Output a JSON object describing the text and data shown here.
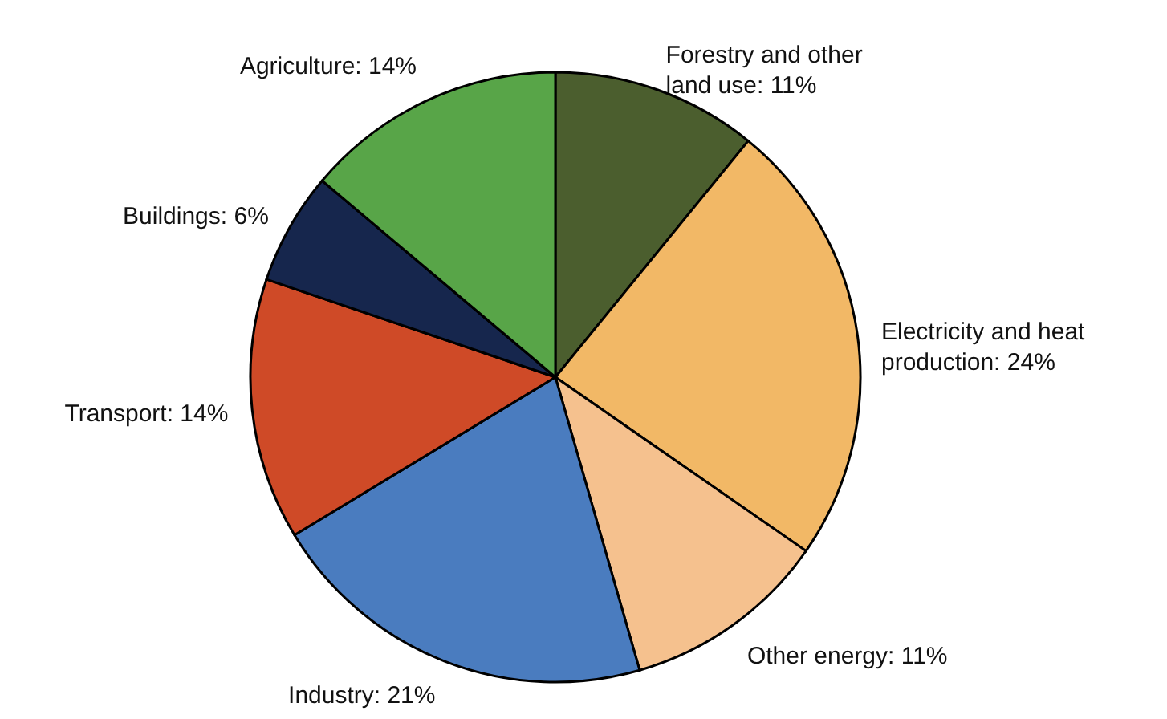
{
  "chart_data": {
    "type": "pie",
    "categories": [
      "Forestry and other land use",
      "Electricity and heat production",
      "Other energy",
      "Industry",
      "Transport",
      "Buildings",
      "Agriculture"
    ],
    "values": [
      11,
      24,
      11,
      21,
      14,
      6,
      14
    ],
    "value_labels": [
      "11%",
      "24%",
      "11%",
      "21%",
      "14%",
      "6%",
      "14%"
    ],
    "colors": [
      "#4b5e2e",
      "#f2b866",
      "#f5c18e",
      "#4a7cbf",
      "#cf4a27",
      "#16264d",
      "#58a548"
    ]
  }
}
